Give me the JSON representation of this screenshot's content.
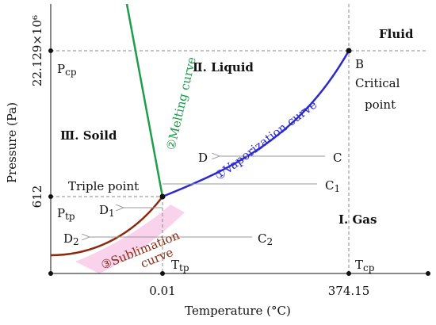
{
  "axes": {
    "xlabel": "Temperature (°C)",
    "ylabel": "Pressure (Pa)",
    "x_ticks": [
      "0.01",
      "374.15"
    ],
    "y_ticks": [
      "612",
      "22.129×10⁶"
    ]
  },
  "regions": {
    "fluid": "Fluid",
    "liquid": "Ⅱ. Liquid",
    "solid": "Ⅲ. Soild",
    "gas": "Ⅰ. Gas"
  },
  "points": {
    "critical_letter": "B",
    "critical_line1": "Critical",
    "critical_line2": "point",
    "triple": "Triple point",
    "pcp_main": "P",
    "pcp_sub": "cp",
    "ptp_main": "P",
    "ptp_sub": "tp",
    "ttp_main": "T",
    "ttp_sub": "tp",
    "tcp_main": "T",
    "tcp_sub": "cp"
  },
  "curves": {
    "melting": "②Melting curve",
    "vaporization": "①Vaporization curve",
    "sublimation_line1": "③Sublimation",
    "sublimation_line2": "curve"
  },
  "process_points": {
    "C": "C",
    "D": "D",
    "C1_main": "C",
    "C1_sub": "1",
    "D1_main": "D",
    "D1_sub": "1",
    "C2_main": "C",
    "C2_sub": "2",
    "D2_main": "D",
    "D2_sub": "2"
  },
  "colors": {
    "melting": "#1e9e4a",
    "vaporization": "#2a2ad0",
    "sublimation": "#8b2a10",
    "highlight": "#f7c7e6",
    "arrow": "#9a9a9a",
    "dashed": "#888888"
  }
}
